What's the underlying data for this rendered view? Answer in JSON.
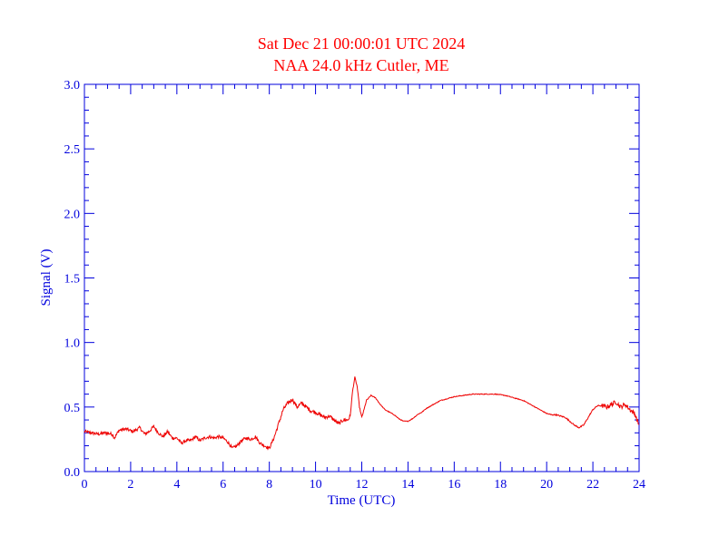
{
  "chart_data": {
    "type": "line",
    "title": "Sat Dec 21 00:00:01 UTC 2024",
    "subtitle": "NAA 24.0 kHz Cutler, ME",
    "xlabel": "Time (UTC)",
    "ylabel": "Signal (V)",
    "xlim": [
      0,
      24
    ],
    "ylim": [
      0.0,
      3.0
    ],
    "x_ticks": [
      "0",
      "2",
      "4",
      "6",
      "8",
      "10",
      "12",
      "14",
      "16",
      "18",
      "20",
      "22",
      "24"
    ],
    "y_ticks": [
      "0.0",
      "0.5",
      "1.0",
      "1.5",
      "2.0",
      "2.5",
      "3.0"
    ],
    "grid": false,
    "series": [
      {
        "x": [
          0,
          0.3,
          0.6,
          0.9,
          1.2,
          1.3,
          1.5,
          1.8,
          2.1,
          2.4,
          2.6,
          2.8,
          3.0,
          3.2,
          3.4,
          3.6,
          3.8,
          4.0,
          4.2,
          4.4,
          4.6,
          4.8,
          5.0,
          5.2,
          5.4,
          5.6,
          5.8,
          6.0,
          6.2,
          6.4,
          6.6,
          6.8,
          7.0,
          7.2,
          7.4,
          7.6,
          7.8,
          8.0,
          8.2,
          8.4,
          8.6,
          8.8,
          9.0,
          9.2,
          9.4,
          9.6,
          9.8,
          10.0,
          10.2,
          10.4,
          10.6,
          10.8,
          11.0,
          11.2,
          11.4,
          11.5,
          11.6,
          11.7,
          11.8,
          11.9,
          12.0,
          12.1,
          12.2,
          12.4,
          12.6,
          12.8,
          13.0,
          13.2,
          13.4,
          13.6,
          13.8,
          14.0,
          14.2,
          14.4,
          14.6,
          14.8,
          15.0,
          15.2,
          15.4,
          15.6,
          15.8,
          16.0,
          16.2,
          16.4,
          16.6,
          16.8,
          17.0,
          17.2,
          17.4,
          17.6,
          17.8,
          18.0,
          18.2,
          18.4,
          18.6,
          18.8,
          19.0,
          19.2,
          19.4,
          19.6,
          19.8,
          20.0,
          20.2,
          20.4,
          20.6,
          20.8,
          21.0,
          21.2,
          21.4,
          21.6,
          21.8,
          22.0,
          22.2,
          22.4,
          22.6,
          22.8,
          23.0,
          23.2,
          23.4,
          23.6,
          23.8,
          24.0
        ],
        "y": [
          0.31,
          0.3,
          0.29,
          0.3,
          0.29,
          0.26,
          0.32,
          0.33,
          0.31,
          0.34,
          0.29,
          0.31,
          0.35,
          0.3,
          0.27,
          0.31,
          0.26,
          0.26,
          0.22,
          0.24,
          0.24,
          0.27,
          0.24,
          0.26,
          0.27,
          0.26,
          0.27,
          0.26,
          0.23,
          0.18,
          0.2,
          0.24,
          0.26,
          0.25,
          0.27,
          0.22,
          0.2,
          0.18,
          0.26,
          0.37,
          0.48,
          0.53,
          0.56,
          0.5,
          0.53,
          0.5,
          0.47,
          0.46,
          0.44,
          0.42,
          0.43,
          0.4,
          0.37,
          0.4,
          0.4,
          0.43,
          0.62,
          0.73,
          0.66,
          0.5,
          0.42,
          0.48,
          0.55,
          0.59,
          0.57,
          0.52,
          0.48,
          0.46,
          0.44,
          0.41,
          0.39,
          0.39,
          0.41,
          0.44,
          0.46,
          0.49,
          0.51,
          0.53,
          0.55,
          0.56,
          0.57,
          0.58,
          0.585,
          0.59,
          0.595,
          0.6,
          0.6,
          0.6,
          0.6,
          0.6,
          0.6,
          0.595,
          0.59,
          0.58,
          0.57,
          0.56,
          0.55,
          0.53,
          0.51,
          0.49,
          0.47,
          0.45,
          0.44,
          0.44,
          0.43,
          0.42,
          0.39,
          0.36,
          0.34,
          0.36,
          0.42,
          0.48,
          0.51,
          0.51,
          0.5,
          0.52,
          0.54,
          0.5,
          0.52,
          0.48,
          0.45,
          0.36
        ]
      }
    ]
  },
  "colors": {
    "title": "#ff0000",
    "line": "#ee0000",
    "axes": "#0000dd",
    "background": "#ffffff"
  }
}
